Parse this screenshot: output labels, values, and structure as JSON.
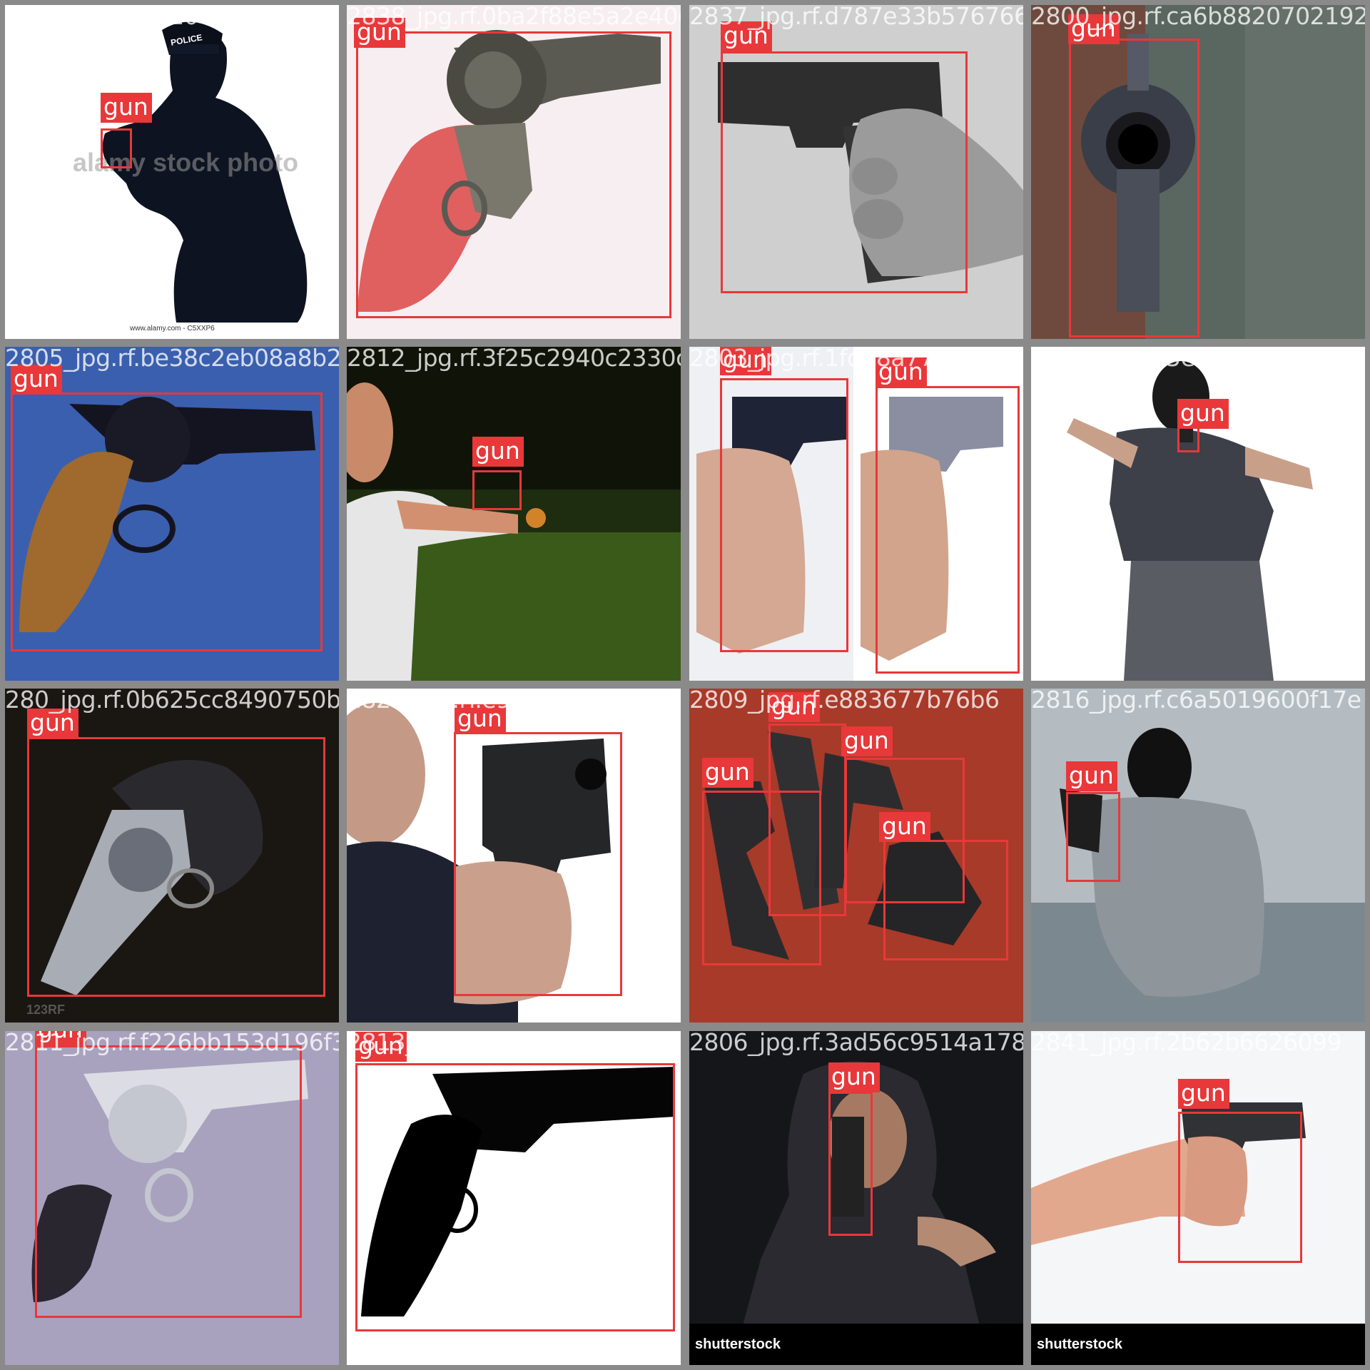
{
  "tiles": [
    {
      "filename": "1000_jpg.rf.0720cc7141d83c1f0d29ba4f003a52843ae12",
      "labels": [
        "gun"
      ],
      "watermarks": [
        "alamy stock photo",
        "www.alamy.com - C5XXP6"
      ],
      "badge": "POLICE"
    },
    {
      "filename": "2838_jpg.rf.0ba2f88e5a2e40d29",
      "labels": [
        "gun"
      ]
    },
    {
      "filename": "2837_jpg.rf.d787e33b57676666a22",
      "labels": [
        "gun"
      ]
    },
    {
      "filename": "2800_jpg.rf.ca6b8820702192",
      "labels": [
        "gun"
      ]
    },
    {
      "filename": "2805_jpg.rf.be38c2eb08a8b2",
      "labels": [
        "gun"
      ]
    },
    {
      "filename": "2812_jpg.rf.3f25c2940c2330c4",
      "labels": [
        "gun"
      ]
    },
    {
      "filename": "2803_jpg.rf.1fd68a77_2058fff1f038",
      "labels": [
        "gun",
        "gun"
      ]
    },
    {
      "filename": "2815_jpg.rf.5e28c1742347295fced",
      "labels": [
        "gun"
      ]
    },
    {
      "filename": "280_jpg.rf.0b625cc8490750b2",
      "labels": [
        "gun"
      ],
      "watermarks": [
        "123RF"
      ]
    },
    {
      "filename": "2825_jpg.rf.e9e6c41348251f4",
      "labels": [
        "gun"
      ]
    },
    {
      "filename": "2809_jpg.rf.e883677b76b6",
      "labels": [
        "gun",
        "gun",
        "gun",
        "gun"
      ]
    },
    {
      "filename": "2816_jpg.rf.c6a5019600f17e",
      "labels": [
        "gun"
      ]
    },
    {
      "filename": "2811_jpg.rf.f226bb153d196f3",
      "labels": [
        "gun"
      ]
    },
    {
      "filename": "2813_jpg.rf.2b493757bd32fbdf",
      "labels": [
        "gun"
      ]
    },
    {
      "filename": "2806_jpg.rf.3ad56c9514a178",
      "labels": [
        "gun"
      ],
      "watermarks": [
        "shutterstock"
      ]
    },
    {
      "filename": "2841_jpg.rf.2b62b6626099",
      "labels": [
        "gun"
      ],
      "watermarks": [
        "shutterstock"
      ]
    }
  ]
}
